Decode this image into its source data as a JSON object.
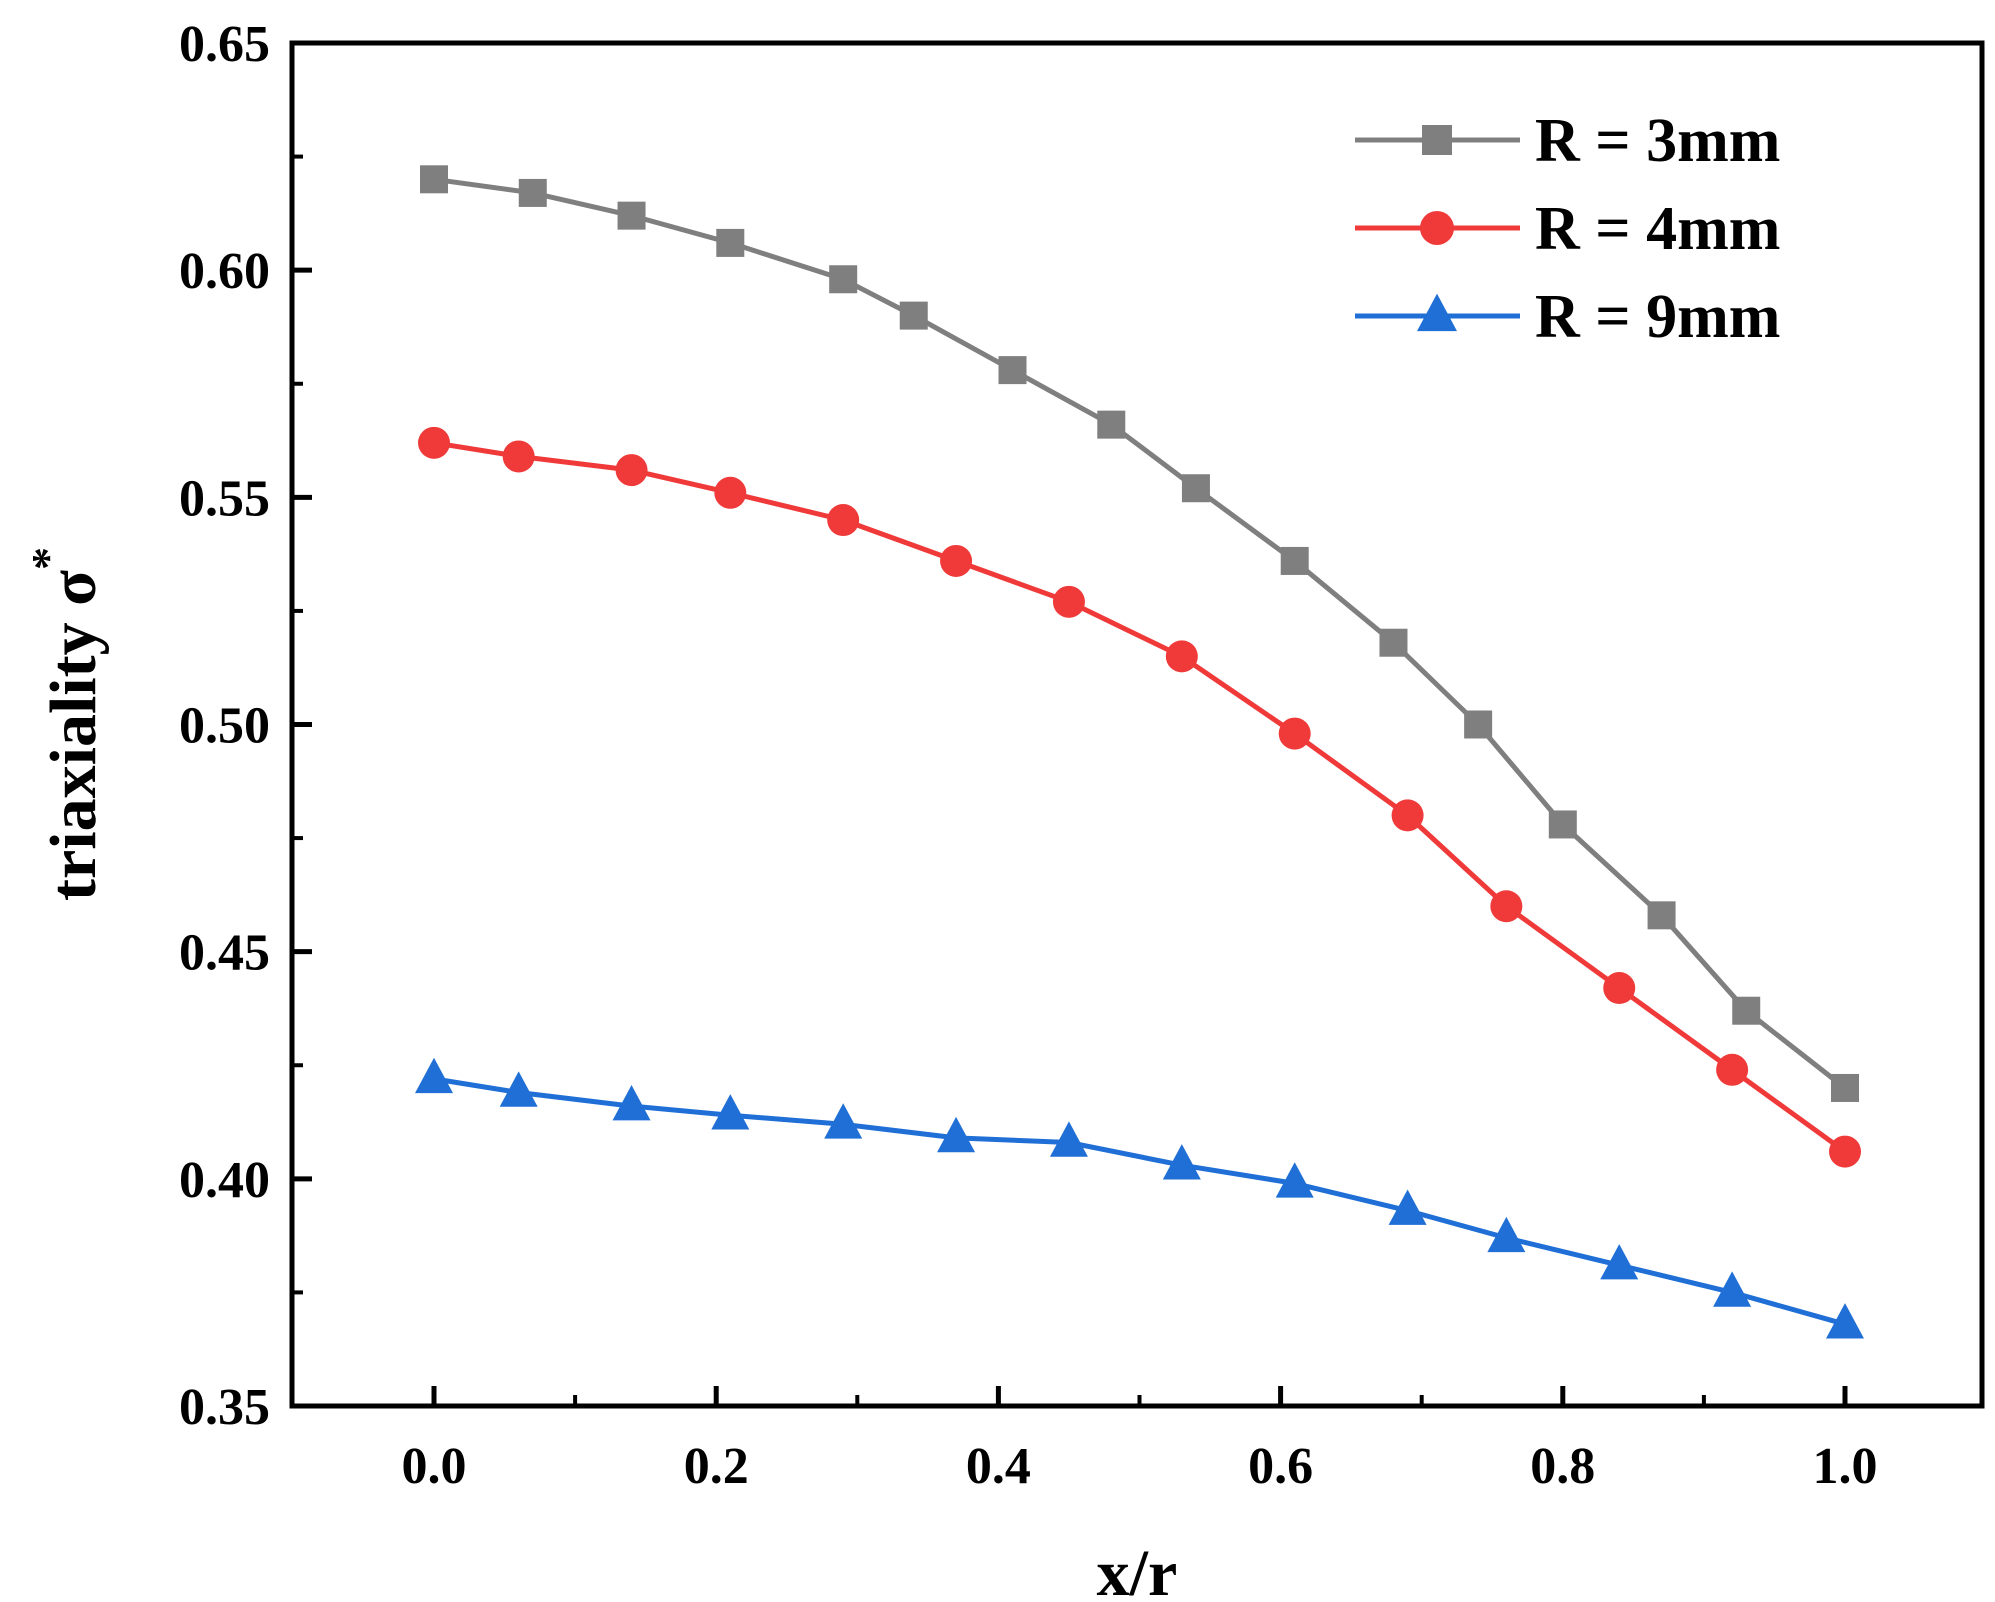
{
  "chart_data": {
    "type": "line",
    "title": "",
    "xlabel": "x/r",
    "ylabel": "triaxiality σ",
    "ylabel_superscript": "*",
    "xlim": [
      -0.1,
      1.1
    ],
    "ylim": [
      0.35,
      0.65
    ],
    "xticks": [
      0.0,
      0.2,
      0.4,
      0.6,
      0.8,
      1.0
    ],
    "xtick_labels": [
      "0.0",
      "0.2",
      "0.4",
      "0.6",
      "0.8",
      "1.0"
    ],
    "yticks": [
      0.35,
      0.4,
      0.45,
      0.5,
      0.55,
      0.6,
      0.65
    ],
    "ytick_labels": [
      "0.35",
      "0.40",
      "0.45",
      "0.50",
      "0.55",
      "0.60",
      "0.65"
    ],
    "grid": false,
    "legend_position": "top-right",
    "series": [
      {
        "name": "R = 3mm",
        "color": "#7f7f7f",
        "marker": "square",
        "x": [
          0.0,
          0.07,
          0.14,
          0.21,
          0.29,
          0.34,
          0.41,
          0.48,
          0.54,
          0.61,
          0.68,
          0.74,
          0.8,
          0.87,
          0.93,
          1.0
        ],
        "values": [
          0.62,
          0.617,
          0.612,
          0.606,
          0.598,
          0.59,
          0.578,
          0.566,
          0.552,
          0.536,
          0.518,
          0.5,
          0.478,
          0.458,
          0.437,
          0.42
        ]
      },
      {
        "name": "R = 4mm",
        "color": "#f03a3a",
        "marker": "circle",
        "x": [
          0.0,
          0.06,
          0.14,
          0.21,
          0.29,
          0.37,
          0.45,
          0.53,
          0.61,
          0.69,
          0.76,
          0.84,
          0.92,
          1.0
        ],
        "values": [
          0.562,
          0.559,
          0.556,
          0.551,
          0.545,
          0.536,
          0.527,
          0.515,
          0.498,
          0.48,
          0.46,
          0.442,
          0.424,
          0.406
        ]
      },
      {
        "name": "R = 9mm",
        "color": "#1f6fd6",
        "marker": "triangle",
        "x": [
          0.0,
          0.06,
          0.14,
          0.21,
          0.29,
          0.37,
          0.45,
          0.53,
          0.61,
          0.69,
          0.76,
          0.84,
          0.92,
          1.0
        ],
        "values": [
          0.422,
          0.419,
          0.416,
          0.414,
          0.412,
          0.409,
          0.408,
          0.403,
          0.399,
          0.393,
          0.387,
          0.381,
          0.375,
          0.368
        ]
      }
    ]
  }
}
